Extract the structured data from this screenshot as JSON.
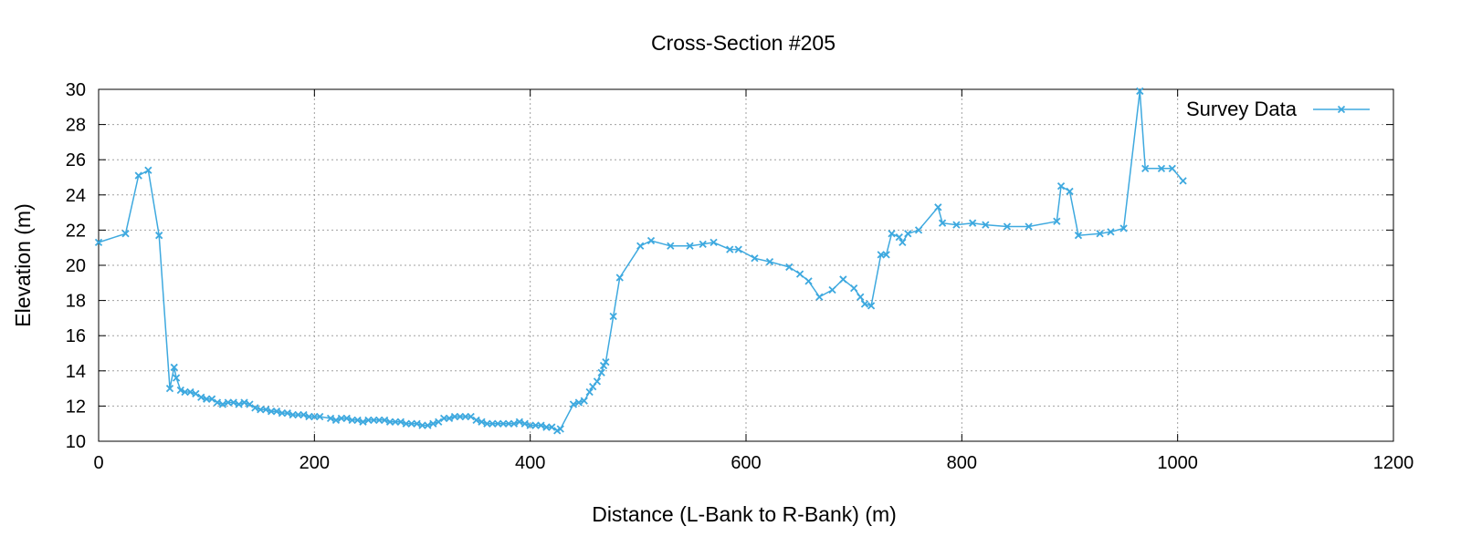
{
  "chart_data": {
    "type": "line",
    "title": "Cross-Section #205",
    "xlabel": "Distance (L-Bank to R-Bank) (m)",
    "ylabel": "Elevation (m)",
    "xlim": [
      0,
      1200
    ],
    "ylim": [
      10,
      30
    ],
    "xticks": [
      0,
      200,
      400,
      600,
      800,
      1000,
      1200
    ],
    "yticks": [
      10,
      12,
      14,
      16,
      18,
      20,
      22,
      24,
      26,
      28,
      30
    ],
    "grid": true,
    "legend_position": "top-right",
    "series": [
      {
        "name": "Survey Data",
        "color": "#3ea9df",
        "marker": "x",
        "x": [
          0,
          25,
          37,
          46,
          56,
          66,
          70,
          72,
          76,
          80,
          85,
          90,
          95,
          100,
          105,
          110,
          115,
          120,
          125,
          130,
          135,
          140,
          145,
          150,
          155,
          160,
          165,
          170,
          175,
          180,
          185,
          190,
          195,
          200,
          205,
          215,
          220,
          225,
          230,
          235,
          240,
          245,
          250,
          255,
          260,
          265,
          270,
          275,
          280,
          285,
          290,
          295,
          300,
          305,
          310,
          315,
          320,
          325,
          330,
          335,
          340,
          345,
          350,
          355,
          360,
          365,
          370,
          375,
          380,
          385,
          390,
          395,
          400,
          405,
          410,
          415,
          420,
          425,
          428,
          440,
          445,
          450,
          455,
          458,
          462,
          466,
          468,
          470,
          477,
          483,
          502,
          512,
          530,
          548,
          560,
          570,
          585,
          593,
          608,
          622,
          640,
          650,
          658,
          668,
          680,
          690,
          700,
          706,
          710,
          716,
          725,
          730,
          735,
          742,
          745,
          750,
          760,
          778,
          782,
          795,
          810,
          822,
          842,
          862,
          888,
          892,
          900,
          908,
          928,
          938,
          950,
          965,
          970,
          985,
          995,
          1005
        ],
        "y": [
          21.3,
          21.8,
          25.1,
          25.4,
          21.7,
          13.0,
          14.2,
          13.6,
          12.9,
          12.8,
          12.8,
          12.7,
          12.5,
          12.4,
          12.4,
          12.2,
          12.1,
          12.2,
          12.2,
          12.1,
          12.2,
          12.1,
          11.9,
          11.8,
          11.8,
          11.7,
          11.7,
          11.6,
          11.6,
          11.5,
          11.5,
          11.5,
          11.4,
          11.4,
          11.4,
          11.3,
          11.2,
          11.3,
          11.3,
          11.2,
          11.2,
          11.1,
          11.2,
          11.2,
          11.2,
          11.2,
          11.1,
          11.1,
          11.1,
          11.0,
          11.0,
          11.0,
          10.9,
          10.9,
          11.0,
          11.1,
          11.3,
          11.3,
          11.4,
          11.4,
          11.4,
          11.4,
          11.2,
          11.1,
          11.0,
          11.0,
          11.0,
          11.0,
          11.0,
          11.0,
          11.1,
          11.0,
          10.9,
          10.9,
          10.9,
          10.8,
          10.8,
          10.6,
          10.7,
          12.1,
          12.2,
          12.3,
          12.8,
          13.1,
          13.4,
          13.9,
          14.3,
          14.5,
          17.1,
          19.3,
          21.1,
          21.4,
          21.1,
          21.1,
          21.2,
          21.3,
          20.9,
          20.9,
          20.4,
          20.2,
          19.9,
          19.5,
          19.1,
          18.2,
          18.6,
          19.2,
          18.7,
          18.2,
          17.8,
          17.7,
          20.6,
          20.6,
          21.8,
          21.6,
          21.3,
          21.8,
          22.0,
          23.3,
          22.4,
          22.3,
          22.4,
          22.3,
          22.2,
          22.2,
          22.5,
          24.5,
          24.2,
          21.7,
          21.8,
          21.9,
          22.1,
          29.9,
          25.5,
          25.5,
          25.5,
          24.8
        ]
      }
    ]
  }
}
